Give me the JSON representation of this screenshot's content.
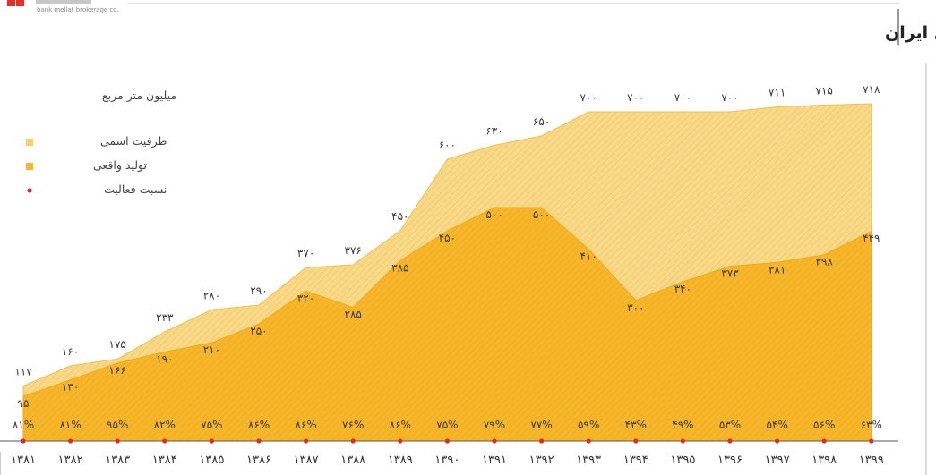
{
  "brand": {
    "caption": "bank mellat brokerage co."
  },
  "chart_data": {
    "type": "area",
    "title": "ظرفیت اسمی و تولید کاشی ایران",
    "unit_label": "میلیون متر مربع",
    "categories": [
      "۱۳۸۱",
      "۱۳۸۲",
      "۱۳۸۳",
      "۱۳۸۴",
      "۱۳۸۵",
      "۱۳۸۶",
      "۱۳۸۷",
      "۱۳۸۸",
      "۱۳۸۹",
      "۱۳۹۰",
      "۱۳۹۱",
      "۱۳۹۲",
      "۱۳۹۳",
      "۱۳۹۴",
      "۱۳۹۵",
      "۱۳۹۶",
      "۱۳۹۷",
      "۱۳۹۸",
      "۱۳۹۹"
    ],
    "series": [
      {
        "name": "ظرفیت اسمی",
        "color": "#f7d27a",
        "values": [
          117,
          160,
          175,
          233,
          280,
          290,
          370,
          376,
          450,
          600,
          630,
          650,
          700,
          700,
          700,
          700,
          711,
          715,
          718
        ],
        "labels": [
          "۱۱۷",
          "۱۶۰",
          "۱۷۵",
          "۲۳۳",
          "۲۸۰",
          "۲۹۰",
          "۳۷۰",
          "۳۷۶",
          "۴۵۰",
          "۶۰۰",
          "۶۳۰",
          "۶۵۰",
          "۷۰۰",
          "۷۰۰",
          "۷۰۰",
          "۷۰۰",
          "۷۱۱",
          "۷۱۵",
          "۷۱۸"
        ]
      },
      {
        "name": "تولید واقعی",
        "color": "#f5b21f",
        "values": [
          95,
          130,
          166,
          190,
          210,
          250,
          320,
          285,
          385,
          450,
          500,
          500,
          410,
          300,
          340,
          373,
          381,
          398,
          449
        ],
        "labels": [
          "۹۵",
          "۱۳۰",
          "۱۶۶",
          "۱۹۰",
          "۲۱۰",
          "۲۵۰",
          "۳۲۰",
          "۲۸۵",
          "۳۸۵",
          "۴۵۰",
          "۵۰۰",
          "۵۰۰",
          "۴۱۰",
          "۳۰۰",
          "۳۴۰",
          "۳۷۳",
          "۳۸۱",
          "۳۹۸",
          "۴۴۹"
        ]
      },
      {
        "name": "نسبت فعالیت",
        "color": "#e02b2b",
        "values": [
          81,
          81,
          95,
          82,
          75,
          86,
          86,
          76,
          86,
          75,
          79,
          77,
          59,
          43,
          49,
          53,
          54,
          56,
          63
        ],
        "labels": [
          "۸۱%",
          "۸۱%",
          "۹۵%",
          "۸۲%",
          "۷۵%",
          "۸۶%",
          "۸۶%",
          "۷۶%",
          "۸۶%",
          "۷۵%",
          "۷۹%",
          "۷۷%",
          "۵۹%",
          "۴۳%",
          "۴۹%",
          "۵۳%",
          "۵۴%",
          "۵۶%",
          "۶۳%"
        ]
      }
    ],
    "ylim": [
      0,
      760
    ],
    "legend": "top-left"
  }
}
